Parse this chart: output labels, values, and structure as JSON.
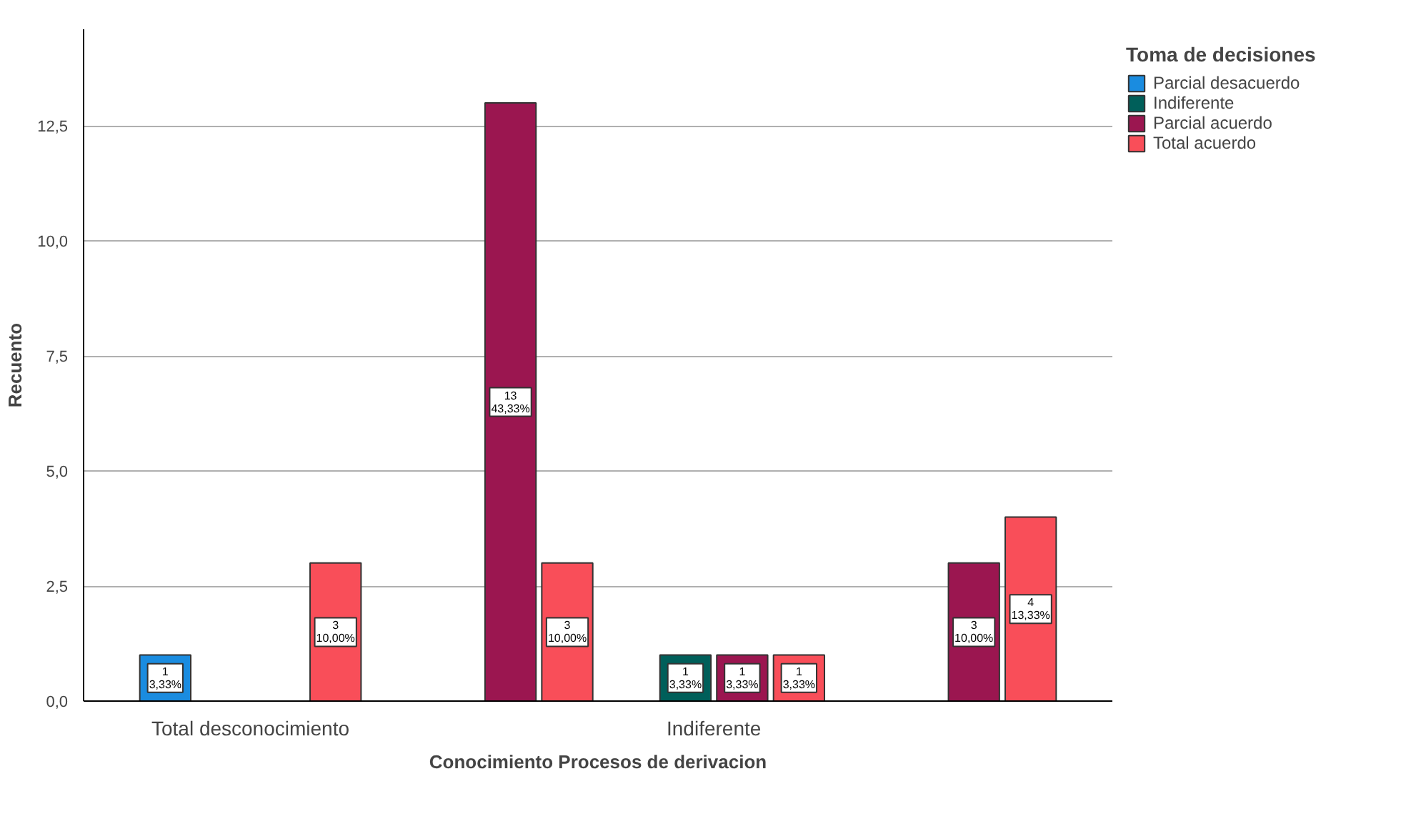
{
  "chart_data": {
    "type": "bar",
    "xlabel": "Conocimiento Procesos de derivacion",
    "ylabel": "Recuento",
    "legend_title": "Toma de decisiones",
    "categories": [
      "Total desconocimiento",
      null,
      "Indiferente",
      null
    ],
    "series": [
      {
        "name": "Parcial desacuerdo",
        "color": "#1a8ce0",
        "values": [
          1,
          null,
          null,
          null
        ],
        "value_labels": [
          "1\n3,33%",
          null,
          null,
          null
        ]
      },
      {
        "name": "Indiferente",
        "color": "#005f5a",
        "values": [
          null,
          null,
          1,
          null
        ],
        "value_labels": [
          null,
          null,
          "1\n3,33%",
          null
        ]
      },
      {
        "name": "Parcial acuerdo",
        "color": "#9b1650",
        "values": [
          null,
          13,
          1,
          3
        ],
        "value_labels": [
          null,
          "13\n43,33%",
          "1\n3,33%",
          "3\n10,00%"
        ]
      },
      {
        "name": "Total acuerdo",
        "color": "#f94e59",
        "values": [
          3,
          3,
          1,
          4
        ],
        "value_labels": [
          "3\n10,00%",
          "3\n10,00%",
          "1\n3,33%",
          "4\n13,33%"
        ]
      }
    ],
    "ylim": [
      0,
      14.6
    ],
    "yticks": [
      {
        "value": 0,
        "label": "0,0"
      },
      {
        "value": 2.5,
        "label": "2,5"
      },
      {
        "value": 5,
        "label": "5,0"
      },
      {
        "value": 7.5,
        "label": "7,5"
      },
      {
        "value": 10,
        "label": "10,0"
      },
      {
        "value": 12.5,
        "label": "12,5"
      }
    ],
    "grid": "y",
    "legend": "top right"
  }
}
